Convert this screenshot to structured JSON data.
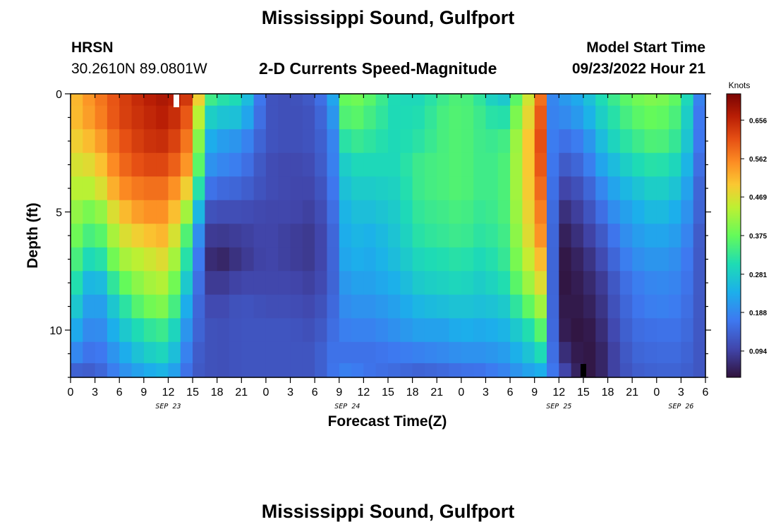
{
  "page": {
    "title": "Mississippi Sound, Gulfport",
    "footer_title": "Mississippi Sound, Gulfport",
    "station_id": "HRSN",
    "station_coords": "30.2610N  89.0801W",
    "plot_subtitle": "2-D Currents Speed-Magnitude",
    "model_start_label": "Model Start Time",
    "model_start_value": "09/23/2022 Hour 21"
  },
  "chart_data": {
    "type": "heatmap",
    "title": "2-D Currents Speed-Magnitude",
    "xlabel": "Forecast Time(Z)",
    "ylabel": "Depth (ft)",
    "ylim": [
      12,
      0
    ],
    "y_ticks": [
      0,
      5,
      10
    ],
    "x_ticks": [
      {
        "label": "0",
        "hour": 0
      },
      {
        "label": "3",
        "hour": 3
      },
      {
        "label": "6",
        "hour": 6
      },
      {
        "label": "9",
        "hour": 9
      },
      {
        "label": "12",
        "hour": 12
      },
      {
        "label": "15",
        "hour": 15
      },
      {
        "label": "18",
        "hour": 18
      },
      {
        "label": "21",
        "hour": 21
      },
      {
        "label": "0",
        "hour": 24
      },
      {
        "label": "3",
        "hour": 27
      },
      {
        "label": "6",
        "hour": 30
      },
      {
        "label": "9",
        "hour": 33
      },
      {
        "label": "12",
        "hour": 36
      },
      {
        "label": "15",
        "hour": 39
      },
      {
        "label": "18",
        "hour": 42
      },
      {
        "label": "21",
        "hour": 45
      },
      {
        "label": "0",
        "hour": 48
      },
      {
        "label": "3",
        "hour": 51
      },
      {
        "label": "6",
        "hour": 54
      },
      {
        "label": "9",
        "hour": 57
      },
      {
        "label": "12",
        "hour": 60
      },
      {
        "label": "15",
        "hour": 63
      },
      {
        "label": "18",
        "hour": 66
      },
      {
        "label": "21",
        "hour": 69
      },
      {
        "label": "0",
        "hour": 72
      },
      {
        "label": "3",
        "hour": 75
      },
      {
        "label": "6",
        "hour": 78
      }
    ],
    "x_range_hours": [
      0,
      78
    ],
    "date_labels": [
      {
        "label": "SEP 23",
        "hour": 12
      },
      {
        "label": "SEP 24",
        "hour": 34
      },
      {
        "label": "SEP 25",
        "hour": 60
      },
      {
        "label": "SEP 26",
        "hour": 75
      }
    ],
    "colorbar": {
      "title": "Knots",
      "ticks": [
        "0.656",
        "0.562",
        "0.469",
        "0.375",
        "0.281",
        "0.188",
        "0.094"
      ],
      "tick_values": [
        0.656,
        0.562,
        0.469,
        0.375,
        0.281,
        0.188,
        0.094
      ],
      "range": [
        0.03,
        0.72
      ]
    },
    "markers": [
      {
        "hour": 13,
        "depth": 0.3,
        "color": "#ffffff"
      },
      {
        "hour": 63,
        "depth": 11.7,
        "color": "#000000"
      }
    ],
    "depths_ft": [
      0,
      1,
      2,
      3,
      4,
      5,
      6,
      7,
      8,
      9,
      10,
      11,
      11.8
    ],
    "profile_hours": [
      0,
      3,
      6,
      9,
      12,
      15,
      16.5,
      18,
      21,
      24,
      27,
      30,
      32,
      34,
      37,
      40,
      43,
      46,
      48,
      50,
      53,
      56,
      58,
      58.6,
      59,
      60,
      63,
      65,
      67,
      69,
      72,
      75,
      77.5
    ],
    "profiles": [
      [
        0.5,
        0.5,
        0.48,
        0.46,
        0.44,
        0.42,
        0.4,
        0.37,
        0.34,
        0.3,
        0.25,
        0.2,
        0.14
      ],
      [
        0.56,
        0.55,
        0.52,
        0.48,
        0.44,
        0.38,
        0.33,
        0.28,
        0.22,
        0.19,
        0.17,
        0.15,
        0.13
      ],
      [
        0.62,
        0.62,
        0.6,
        0.58,
        0.55,
        0.5,
        0.46,
        0.42,
        0.36,
        0.3,
        0.26,
        0.22,
        0.19
      ],
      [
        0.66,
        0.65,
        0.64,
        0.62,
        0.58,
        0.55,
        0.5,
        0.45,
        0.42,
        0.38,
        0.32,
        0.28,
        0.23
      ],
      [
        0.68,
        0.67,
        0.65,
        0.62,
        0.58,
        0.55,
        0.52,
        0.48,
        0.44,
        0.4,
        0.34,
        0.3,
        0.25
      ],
      [
        0.62,
        0.58,
        0.55,
        0.52,
        0.46,
        0.38,
        0.3,
        0.26,
        0.22,
        0.18,
        0.16,
        0.14,
        0.13
      ],
      [
        0.36,
        0.3,
        0.25,
        0.21,
        0.17,
        0.12,
        0.09,
        0.08,
        0.09,
        0.11,
        0.12,
        0.12,
        0.12
      ],
      [
        0.32,
        0.27,
        0.22,
        0.19,
        0.15,
        0.11,
        0.08,
        0.05,
        0.08,
        0.1,
        0.11,
        0.11,
        0.11
      ],
      [
        0.3,
        0.26,
        0.2,
        0.17,
        0.14,
        0.11,
        0.09,
        0.08,
        0.1,
        0.12,
        0.12,
        0.12,
        0.12
      ],
      [
        0.12,
        0.12,
        0.12,
        0.11,
        0.11,
        0.1,
        0.1,
        0.1,
        0.1,
        0.11,
        0.12,
        0.12,
        0.12
      ],
      [
        0.11,
        0.11,
        0.11,
        0.1,
        0.1,
        0.1,
        0.09,
        0.09,
        0.1,
        0.11,
        0.12,
        0.12,
        0.12
      ],
      [
        0.13,
        0.12,
        0.12,
        0.11,
        0.1,
        0.09,
        0.08,
        0.08,
        0.09,
        0.1,
        0.11,
        0.12,
        0.12
      ],
      [
        0.2,
        0.18,
        0.16,
        0.16,
        0.15,
        0.14,
        0.13,
        0.13,
        0.13,
        0.14,
        0.15,
        0.16,
        0.16
      ],
      [
        0.4,
        0.38,
        0.34,
        0.3,
        0.28,
        0.26,
        0.25,
        0.24,
        0.22,
        0.2,
        0.18,
        0.16,
        0.18
      ],
      [
        0.36,
        0.34,
        0.32,
        0.3,
        0.28,
        0.26,
        0.24,
        0.23,
        0.22,
        0.2,
        0.18,
        0.16,
        0.16
      ],
      [
        0.3,
        0.3,
        0.3,
        0.3,
        0.29,
        0.28,
        0.27,
        0.26,
        0.24,
        0.22,
        0.2,
        0.17,
        0.15
      ],
      [
        0.3,
        0.31,
        0.32,
        0.34,
        0.34,
        0.33,
        0.32,
        0.3,
        0.28,
        0.25,
        0.22,
        0.18,
        0.14
      ],
      [
        0.34,
        0.35,
        0.35,
        0.35,
        0.35,
        0.34,
        0.33,
        0.31,
        0.29,
        0.26,
        0.22,
        0.19,
        0.15
      ],
      [
        0.36,
        0.36,
        0.36,
        0.36,
        0.36,
        0.35,
        0.34,
        0.32,
        0.3,
        0.27,
        0.24,
        0.2,
        0.16
      ],
      [
        0.33,
        0.34,
        0.34,
        0.34,
        0.34,
        0.33,
        0.32,
        0.3,
        0.28,
        0.26,
        0.23,
        0.2,
        0.16
      ],
      [
        0.26,
        0.3,
        0.33,
        0.34,
        0.34,
        0.34,
        0.33,
        0.32,
        0.3,
        0.27,
        0.24,
        0.21,
        0.18
      ],
      [
        0.44,
        0.46,
        0.48,
        0.48,
        0.48,
        0.47,
        0.46,
        0.44,
        0.41,
        0.36,
        0.3,
        0.26,
        0.22
      ],
      [
        0.6,
        0.62,
        0.63,
        0.62,
        0.6,
        0.58,
        0.56,
        0.52,
        0.48,
        0.43,
        0.37,
        0.31,
        0.24
      ],
      [
        0.52,
        0.54,
        0.55,
        0.54,
        0.52,
        0.5,
        0.48,
        0.45,
        0.42,
        0.38,
        0.33,
        0.27,
        0.21
      ],
      [
        0.18,
        0.18,
        0.18,
        0.18,
        0.18,
        0.18,
        0.18,
        0.18,
        0.18,
        0.18,
        0.18,
        0.18,
        0.18
      ],
      [
        0.2,
        0.18,
        0.15,
        0.12,
        0.09,
        0.06,
        0.04,
        0.03,
        0.03,
        0.04,
        0.05,
        0.08,
        0.12
      ],
      [
        0.24,
        0.22,
        0.18,
        0.15,
        0.12,
        0.1,
        0.08,
        0.06,
        0.05,
        0.04,
        0.03,
        0.03,
        0.03
      ],
      [
        0.3,
        0.28,
        0.25,
        0.22,
        0.18,
        0.15,
        0.12,
        0.1,
        0.08,
        0.07,
        0.06,
        0.05,
        0.05
      ],
      [
        0.34,
        0.32,
        0.3,
        0.26,
        0.23,
        0.2,
        0.17,
        0.15,
        0.13,
        0.12,
        0.11,
        0.1,
        0.1
      ],
      [
        0.38,
        0.36,
        0.33,
        0.3,
        0.26,
        0.23,
        0.21,
        0.19,
        0.17,
        0.16,
        0.15,
        0.14,
        0.13
      ],
      [
        0.4,
        0.38,
        0.36,
        0.32,
        0.29,
        0.26,
        0.23,
        0.21,
        0.19,
        0.18,
        0.16,
        0.15,
        0.14
      ],
      [
        0.36,
        0.34,
        0.32,
        0.29,
        0.26,
        0.23,
        0.21,
        0.19,
        0.18,
        0.17,
        0.16,
        0.15,
        0.14
      ],
      [
        0.16,
        0.15,
        0.15,
        0.14,
        0.13,
        0.13,
        0.12,
        0.12,
        0.12,
        0.12,
        0.12,
        0.12,
        0.12
      ]
    ]
  }
}
